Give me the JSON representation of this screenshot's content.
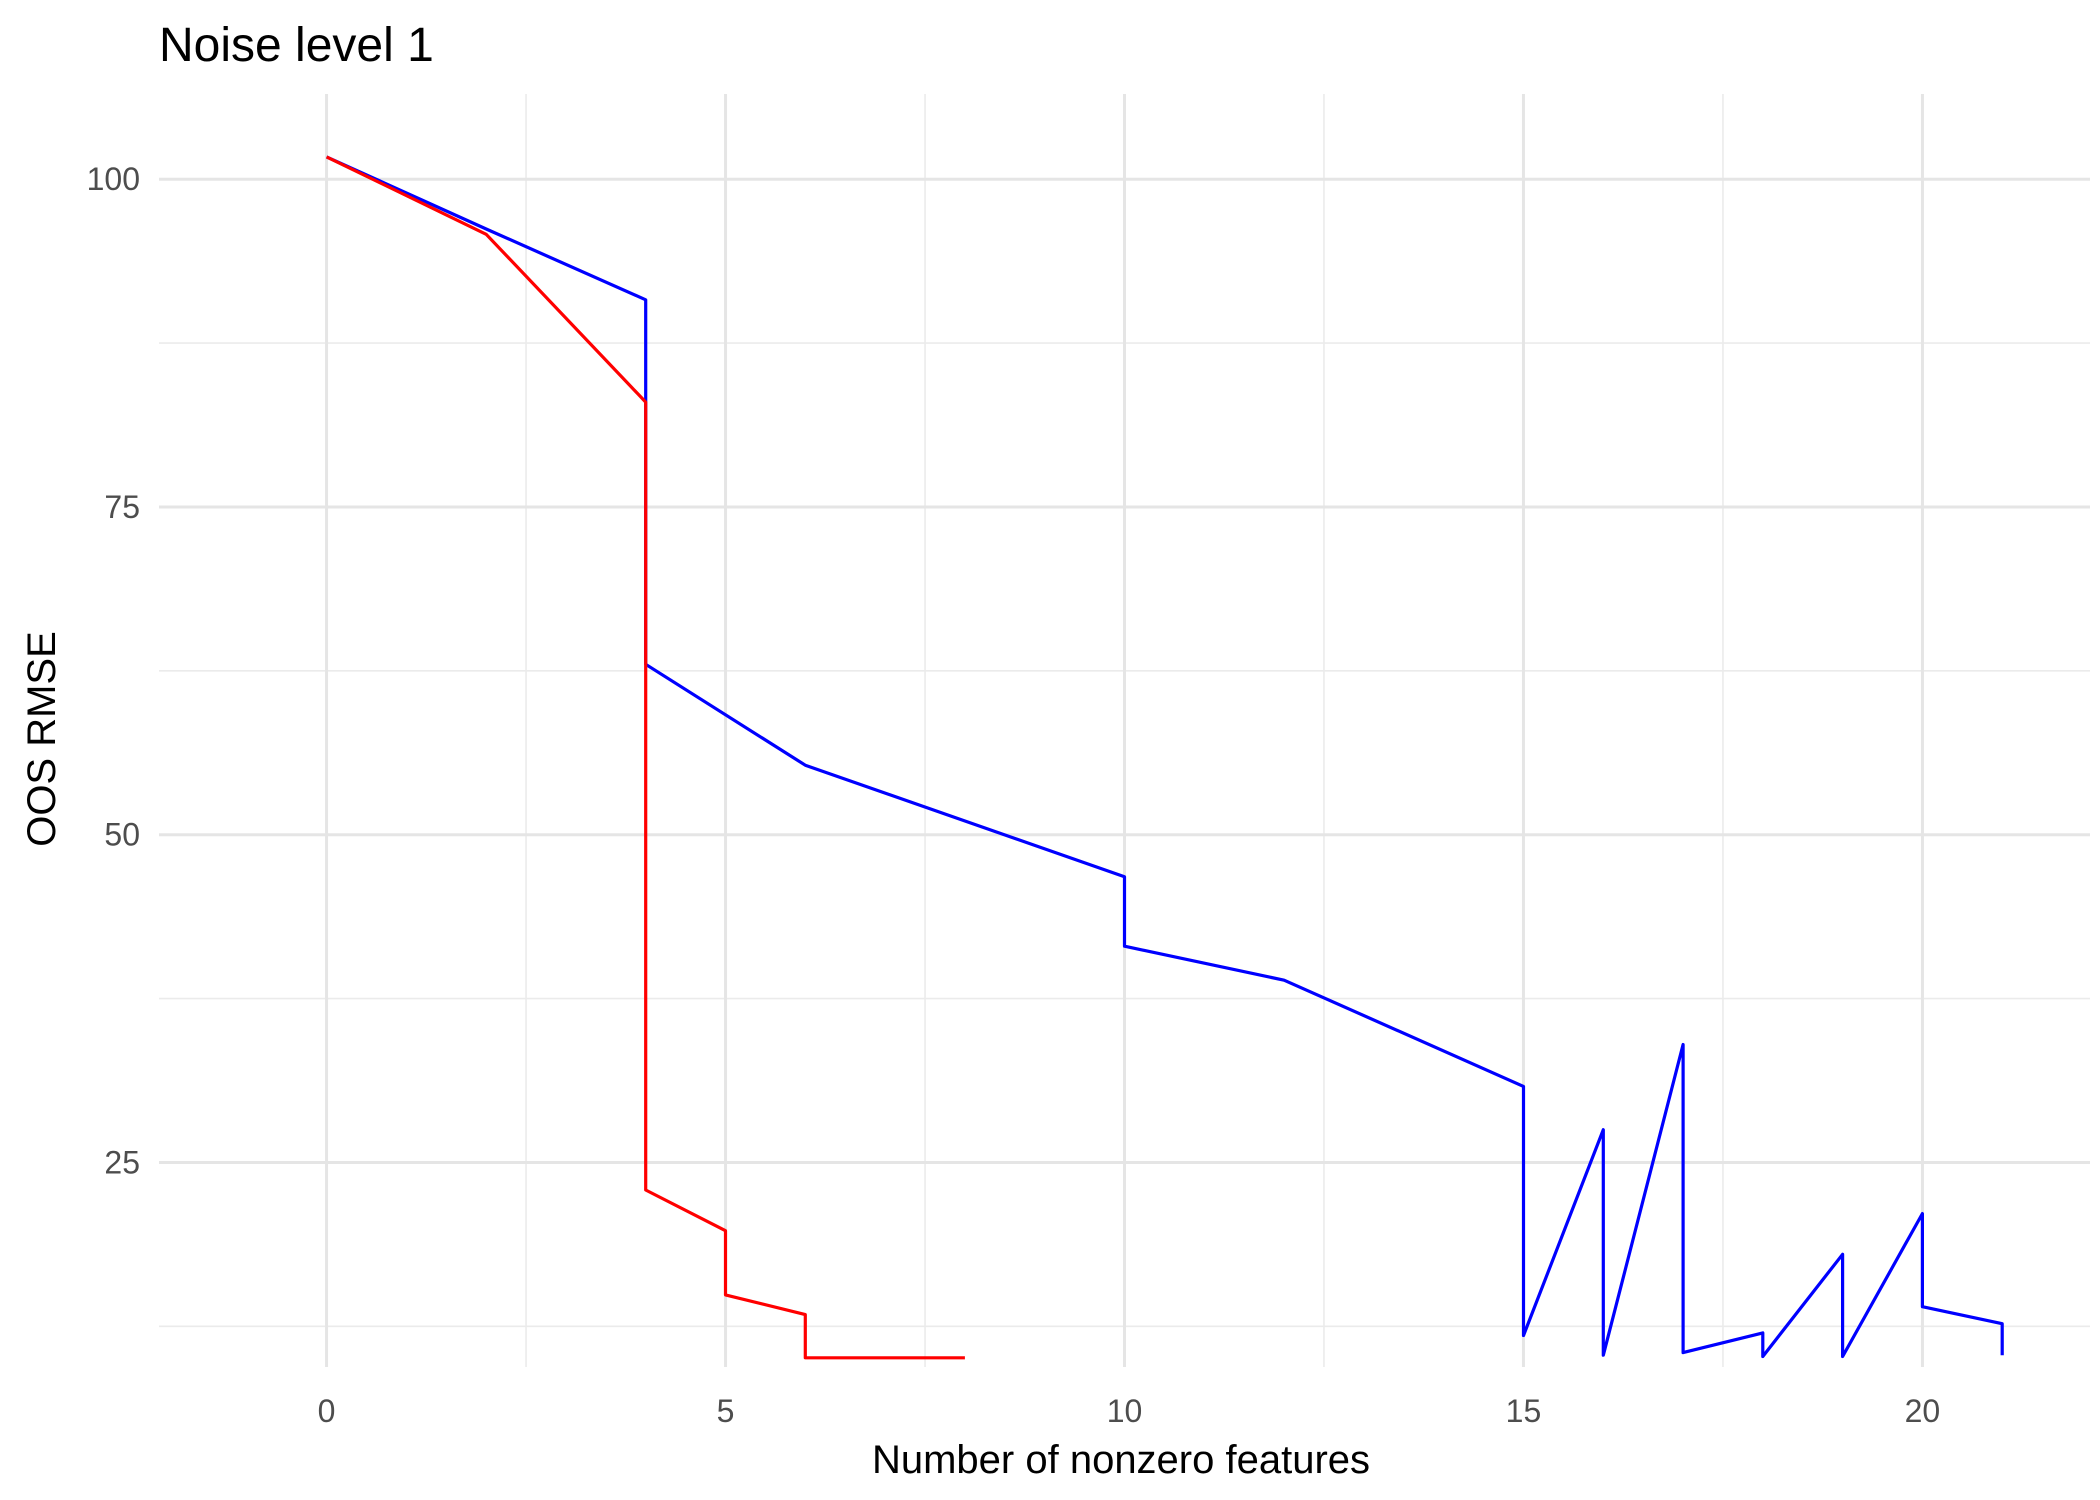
{
  "chart_data": {
    "type": "line",
    "title": "Noise level 1",
    "xlabel": "Number of nonzero features",
    "ylabel": "OOS RMSE",
    "xlim": [
      -2.1,
      22.1
    ],
    "ylim": [
      9.4,
      106.5
    ],
    "x_ticks": [
      0,
      5,
      10,
      15,
      20
    ],
    "x_tick_labels": [
      "0",
      "5",
      "10",
      "15",
      "20"
    ],
    "x_minor_ticks": [
      2.5,
      7.5,
      12.5,
      17.5
    ],
    "y_ticks": [
      25,
      50,
      75,
      100
    ],
    "y_tick_labels": [
      "25",
      "50",
      "75",
      "100"
    ],
    "y_minor_ticks": [
      12.5,
      37.5,
      62.5,
      87.5
    ],
    "grid": true,
    "legend": "none",
    "series": [
      {
        "color": "#0000ff",
        "points": [
          [
            0,
            101.7
          ],
          [
            2,
            96.2
          ],
          [
            4,
            90.8
          ],
          [
            4,
            83.0
          ],
          [
            4,
            63.0
          ],
          [
            6,
            55.3
          ],
          [
            10,
            46.8
          ],
          [
            10,
            41.5
          ],
          [
            12,
            38.9
          ],
          [
            15,
            30.8
          ],
          [
            15,
            11.8
          ],
          [
            16,
            27.5
          ],
          [
            16,
            10.3
          ],
          [
            17,
            34.0
          ],
          [
            17,
            10.5
          ],
          [
            18,
            12.0
          ],
          [
            18,
            10.2
          ],
          [
            19,
            18.0
          ],
          [
            19,
            10.2
          ],
          [
            20,
            21.1
          ],
          [
            20,
            14.0
          ],
          [
            21,
            12.7
          ],
          [
            21,
            10.3
          ]
        ]
      },
      {
        "color": "#ff0000",
        "points": [
          [
            0,
            101.7
          ],
          [
            2,
            95.8
          ],
          [
            4,
            83.0
          ],
          [
            4,
            22.9
          ],
          [
            5,
            19.8
          ],
          [
            5,
            14.9
          ],
          [
            6,
            13.4
          ],
          [
            6,
            10.1
          ],
          [
            7,
            10.1
          ],
          [
            8,
            10.1
          ]
        ]
      }
    ]
  }
}
